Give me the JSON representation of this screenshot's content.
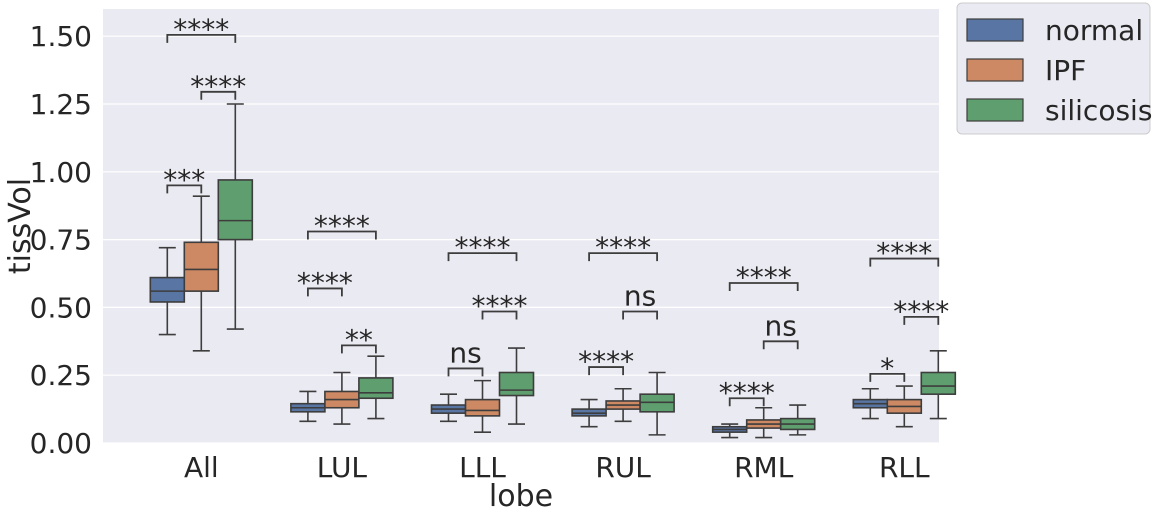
{
  "chart_data": {
    "type": "box",
    "xlabel": "lobe",
    "ylabel": "tissVol",
    "ylim": [
      0,
      1.6
    ],
    "yticks": [
      "0.00",
      "0.25",
      "0.50",
      "0.75",
      "1.00",
      "1.25",
      "1.50"
    ],
    "ytick_values": [
      0,
      0.25,
      0.5,
      0.75,
      1.0,
      1.25,
      1.5
    ],
    "grid": true,
    "legend_position": "outside-right-top",
    "categories": [
      "All",
      "LUL",
      "LLL",
      "RUL",
      "RML",
      "RLL"
    ],
    "series": [
      {
        "name": "normal",
        "color": "#5875a4",
        "boxes": [
          {
            "whislo": 0.4,
            "q1": 0.52,
            "med": 0.56,
            "q3": 0.61,
            "whishi": 0.72
          },
          {
            "whislo": 0.08,
            "q1": 0.115,
            "med": 0.13,
            "q3": 0.145,
            "whishi": 0.19
          },
          {
            "whislo": 0.08,
            "q1": 0.11,
            "med": 0.125,
            "q3": 0.14,
            "whishi": 0.18
          },
          {
            "whislo": 0.06,
            "q1": 0.1,
            "med": 0.11,
            "q3": 0.125,
            "whishi": 0.16
          },
          {
            "whislo": 0.02,
            "q1": 0.04,
            "med": 0.05,
            "q3": 0.06,
            "whishi": 0.07
          },
          {
            "whislo": 0.09,
            "q1": 0.13,
            "med": 0.145,
            "q3": 0.16,
            "whishi": 0.2
          }
        ]
      },
      {
        "name": "IPF",
        "color": "#cc8963",
        "boxes": [
          {
            "whislo": 0.34,
            "q1": 0.56,
            "med": 0.64,
            "q3": 0.74,
            "whishi": 0.91
          },
          {
            "whislo": 0.07,
            "q1": 0.13,
            "med": 0.16,
            "q3": 0.19,
            "whishi": 0.26
          },
          {
            "whislo": 0.04,
            "q1": 0.1,
            "med": 0.12,
            "q3": 0.16,
            "whishi": 0.23
          },
          {
            "whislo": 0.08,
            "q1": 0.125,
            "med": 0.14,
            "q3": 0.155,
            "whishi": 0.2
          },
          {
            "whislo": 0.02,
            "q1": 0.055,
            "med": 0.07,
            "q3": 0.085,
            "whishi": 0.13
          },
          {
            "whislo": 0.06,
            "q1": 0.11,
            "med": 0.135,
            "q3": 0.16,
            "whishi": 0.21
          }
        ]
      },
      {
        "name": "silicosis",
        "color": "#5f9e6e",
        "boxes": [
          {
            "whislo": 0.42,
            "q1": 0.75,
            "med": 0.82,
            "q3": 0.97,
            "whishi": 1.25
          },
          {
            "whislo": 0.09,
            "q1": 0.165,
            "med": 0.185,
            "q3": 0.24,
            "whishi": 0.32
          },
          {
            "whislo": 0.07,
            "q1": 0.175,
            "med": 0.195,
            "q3": 0.26,
            "whishi": 0.35
          },
          {
            "whislo": 0.03,
            "q1": 0.115,
            "med": 0.15,
            "q3": 0.18,
            "whishi": 0.26
          },
          {
            "whislo": 0.03,
            "q1": 0.05,
            "med": 0.07,
            "q3": 0.09,
            "whishi": 0.14
          },
          {
            "whislo": 0.09,
            "q1": 0.18,
            "med": 0.21,
            "q3": 0.26,
            "whishi": 0.34
          }
        ]
      }
    ],
    "annotations": [
      {
        "category": 0,
        "from": 0,
        "to": 2,
        "y": 1.505,
        "label": "****"
      },
      {
        "category": 0,
        "from": 1,
        "to": 2,
        "y": 1.295,
        "label": "****"
      },
      {
        "category": 0,
        "from": 0,
        "to": 1,
        "y": 0.95,
        "label": "***"
      },
      {
        "category": 1,
        "from": 0,
        "to": 2,
        "y": 0.78,
        "label": "****"
      },
      {
        "category": 1,
        "from": 0,
        "to": 1,
        "y": 0.57,
        "label": "****"
      },
      {
        "category": 1,
        "from": 1,
        "to": 2,
        "y": 0.36,
        "label": "**"
      },
      {
        "category": 2,
        "from": 0,
        "to": 2,
        "y": 0.7,
        "label": "****"
      },
      {
        "category": 2,
        "from": 1,
        "to": 2,
        "y": 0.485,
        "label": "****"
      },
      {
        "category": 2,
        "from": 0,
        "to": 1,
        "y": 0.275,
        "label": "ns"
      },
      {
        "category": 3,
        "from": 0,
        "to": 2,
        "y": 0.7,
        "label": "****"
      },
      {
        "category": 3,
        "from": 1,
        "to": 2,
        "y": 0.485,
        "label": "ns"
      },
      {
        "category": 3,
        "from": 0,
        "to": 1,
        "y": 0.28,
        "label": "****"
      },
      {
        "category": 4,
        "from": 0,
        "to": 2,
        "y": 0.59,
        "label": "****"
      },
      {
        "category": 4,
        "from": 1,
        "to": 2,
        "y": 0.375,
        "label": "ns"
      },
      {
        "category": 4,
        "from": 0,
        "to": 1,
        "y": 0.165,
        "label": "****"
      },
      {
        "category": 5,
        "from": 0,
        "to": 2,
        "y": 0.68,
        "label": "****"
      },
      {
        "category": 5,
        "from": 1,
        "to": 2,
        "y": 0.465,
        "label": "****"
      },
      {
        "category": 5,
        "from": 0,
        "to": 1,
        "y": 0.255,
        "label": "*"
      }
    ]
  }
}
